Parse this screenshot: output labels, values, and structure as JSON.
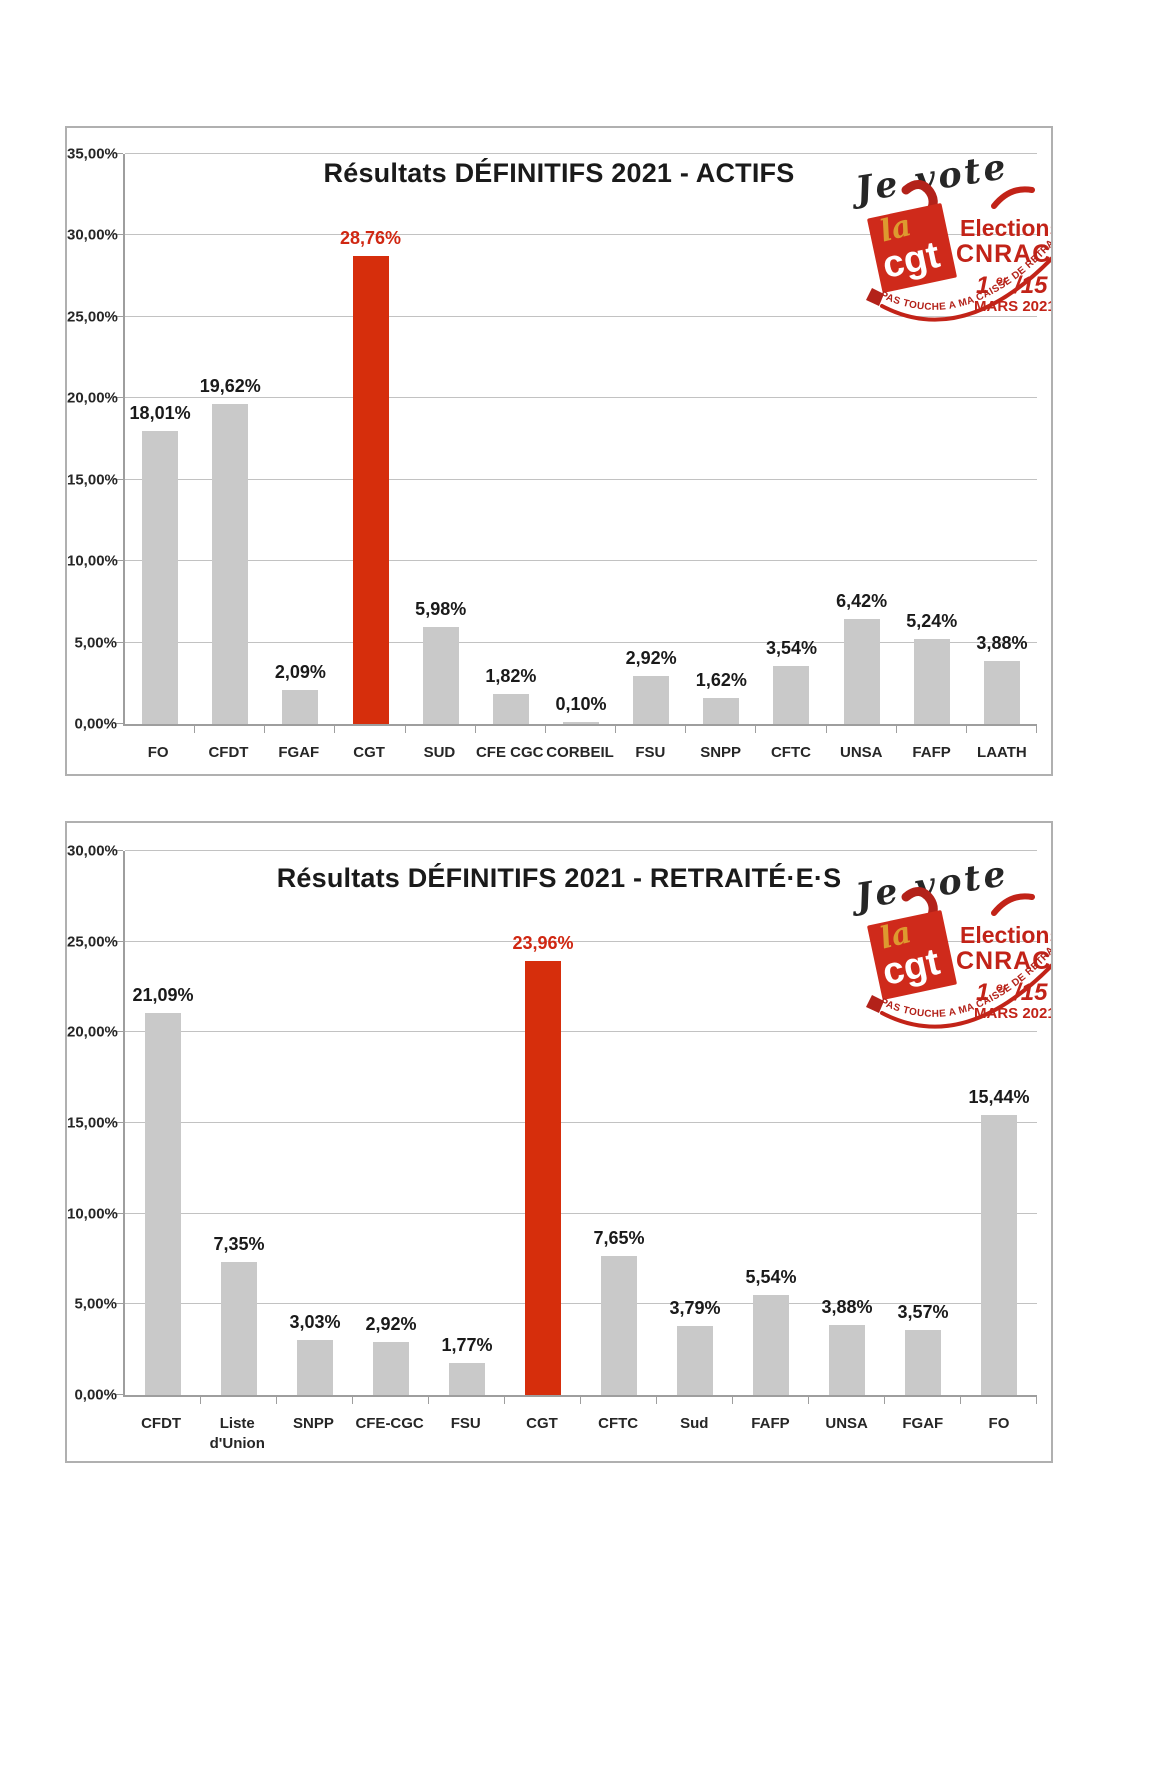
{
  "page": {
    "background": "#ffffff"
  },
  "logo": {
    "je_vote": "Je vote",
    "la": "la",
    "cgt": "cgt",
    "elections": "Elections",
    "cnracl": "CNRACL",
    "date_prefix": "1",
    "date_sup": "er",
    "date_suffix": "/15",
    "date_line2": "MARS 2021",
    "arc_text": "PAS TOUCHE A MA CAISSE DE RETRAITES",
    "red": "#c22318",
    "dark_red": "#b3221a",
    "square_red": "#cf2a1b",
    "gold": "#dd9a2f",
    "ink": "#262626"
  },
  "chart_data": [
    {
      "type": "bar",
      "title": "Résultats DÉFINITIFS 2021 - ACTIFS",
      "categories": [
        "FO",
        "CFDT",
        "FGAF",
        "CGT",
        "SUD",
        "CFE CGC",
        "CORBEIL",
        "FSU",
        "SNPP",
        "CFTC",
        "UNSA",
        "FAFP",
        "LAATH"
      ],
      "values": [
        18.01,
        19.62,
        2.09,
        28.76,
        5.98,
        1.82,
        0.1,
        2.92,
        1.62,
        3.54,
        6.42,
        5.24,
        3.88
      ],
      "value_labels": [
        "18,01%",
        "19,62%",
        "2,09%",
        "28,76%",
        "5,98%",
        "1,82%",
        "0,10%",
        "2,92%",
        "1,62%",
        "3,54%",
        "6,42%",
        "5,24%",
        "3,88%"
      ],
      "highlight_index": 3,
      "ylim": [
        0,
        35
      ],
      "ytick_step": 5,
      "ytick_labels": [
        "0,00%",
        "5,00%",
        "10,00%",
        "15,00%",
        "20,00%",
        "25,00%",
        "30,00%",
        "35,00%"
      ],
      "bar_color": "#c9c9c9",
      "highlight_color": "#d62e0c",
      "highlight_label_color": "#d02712",
      "grid": true,
      "legend": false,
      "xlabel": "",
      "ylabel": ""
    },
    {
      "type": "bar",
      "title": "Résultats DÉFINITIFS 2021 - RETRAITÉ·E·S",
      "categories": [
        "CFDT",
        "Liste d'Union",
        "SNPP",
        "CFE-CGC",
        "FSU",
        "CGT",
        "CFTC",
        "Sud",
        "FAFP",
        "UNSA",
        "FGAF",
        "FO"
      ],
      "values": [
        21.09,
        7.35,
        3.03,
        2.92,
        1.77,
        23.96,
        7.65,
        3.79,
        5.54,
        3.88,
        3.57,
        15.44
      ],
      "value_labels": [
        "21,09%",
        "7,35%",
        "3,03%",
        "2,92%",
        "1,77%",
        "23,96%",
        "7,65%",
        "3,79%",
        "5,54%",
        "3,88%",
        "3,57%",
        "15,44%"
      ],
      "highlight_index": 5,
      "ylim": [
        0,
        30
      ],
      "ytick_step": 5,
      "ytick_labels": [
        "0,00%",
        "5,00%",
        "10,00%",
        "15,00%",
        "20,00%",
        "25,00%",
        "30,00%"
      ],
      "bar_color": "#c9c9c9",
      "highlight_color": "#d62e0c",
      "highlight_label_color": "#d02712",
      "grid": true,
      "legend": false,
      "xlabel": "",
      "ylabel": ""
    }
  ]
}
